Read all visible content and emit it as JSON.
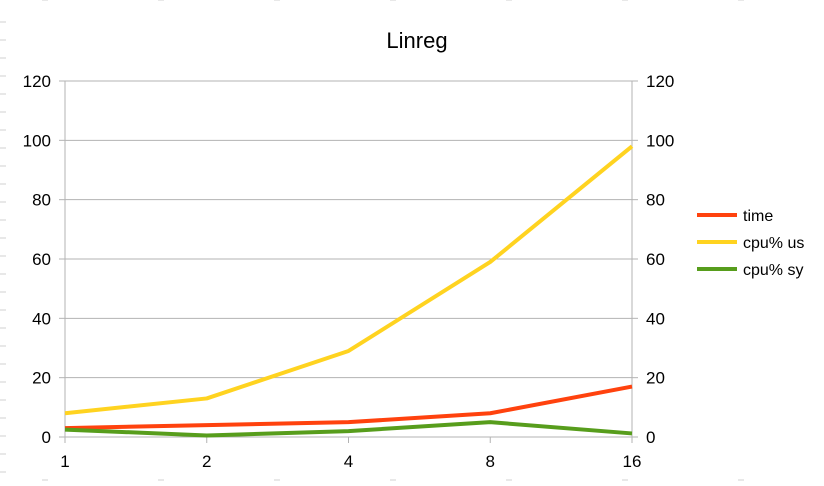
{
  "chart_data": {
    "type": "line",
    "title": "Linreg",
    "categories": [
      "1",
      "2",
      "4",
      "8",
      "16"
    ],
    "ylim": [
      0,
      120
    ],
    "y_ticks": [
      0,
      20,
      40,
      60,
      80,
      100,
      120
    ],
    "secondary_ylim": [
      0,
      120
    ],
    "grid": true,
    "legend_position": "right",
    "series": [
      {
        "name": "time",
        "color": "#ff420e",
        "values": [
          3,
          4,
          5,
          8,
          17
        ]
      },
      {
        "name": "cpu% us",
        "color": "#ffd320",
        "values": [
          8,
          13,
          29,
          59,
          98
        ]
      },
      {
        "name": "cpu% sy",
        "color": "#579d1c",
        "values": [
          2.5,
          0.5,
          2,
          5,
          1.2
        ]
      }
    ]
  }
}
